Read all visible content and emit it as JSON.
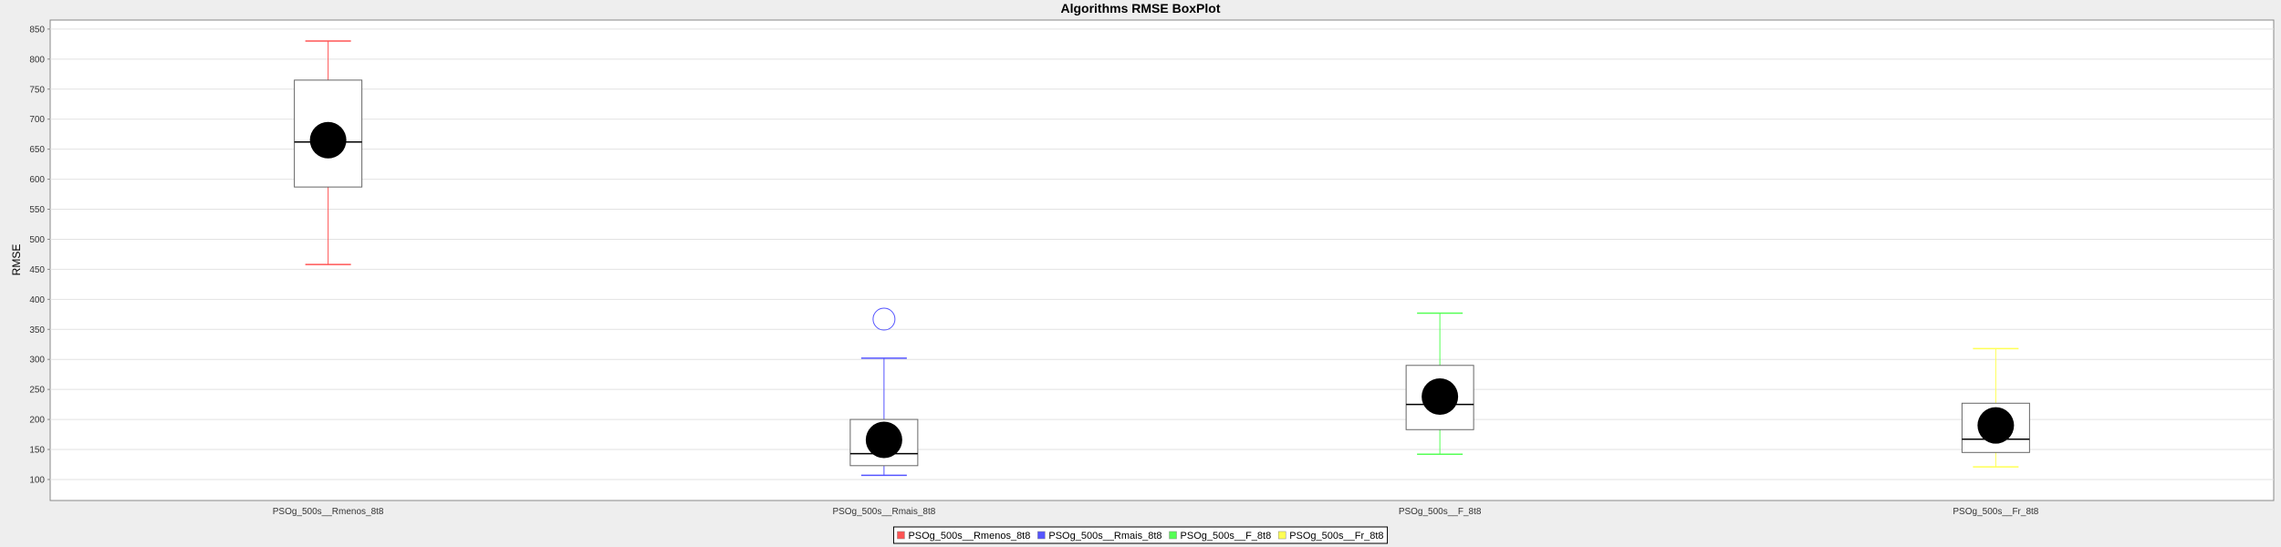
{
  "chart_data": {
    "type": "boxplot",
    "title": "Algorithms RMSE BoxPlot",
    "xlabel": "",
    "ylabel": "RMSE",
    "ylim": [
      65,
      865
    ],
    "yticks": [
      100,
      150,
      200,
      250,
      300,
      350,
      400,
      450,
      500,
      550,
      600,
      650,
      700,
      750,
      800,
      850
    ],
    "grid": true,
    "legend_position": "bottom",
    "categories": [
      "PSOg_500s__Rmenos_8t8",
      "PSOg_500s__Rmais_8t8",
      "PSOg_500s__F_8t8",
      "PSOg_500s__Fr_8t8"
    ],
    "series": [
      {
        "name": "PSOg_500s__Rmenos_8t8",
        "color": "#ff5555",
        "whisker_low": 458,
        "q1": 587,
        "median": 662,
        "q3": 765,
        "whisker_high": 830,
        "mean": 665,
        "outliers": []
      },
      {
        "name": "PSOg_500s__Rmais_8t8",
        "color": "#5555ff",
        "whisker_low": 107,
        "q1": 123,
        "median": 143,
        "q3": 200,
        "whisker_high": 302,
        "mean": 166,
        "outliers": [
          367
        ]
      },
      {
        "name": "PSOg_500s__F_8t8",
        "color": "#55ff55",
        "whisker_low": 142,
        "q1": 183,
        "median": 225,
        "q3": 290,
        "whisker_high": 377,
        "mean": 238,
        "outliers": []
      },
      {
        "name": "PSOg_500s__Fr_8t8",
        "color": "#ffff55",
        "whisker_low": 121,
        "q1": 145,
        "median": 167,
        "q3": 227,
        "whisker_high": 318,
        "mean": 190,
        "outliers": []
      }
    ]
  }
}
